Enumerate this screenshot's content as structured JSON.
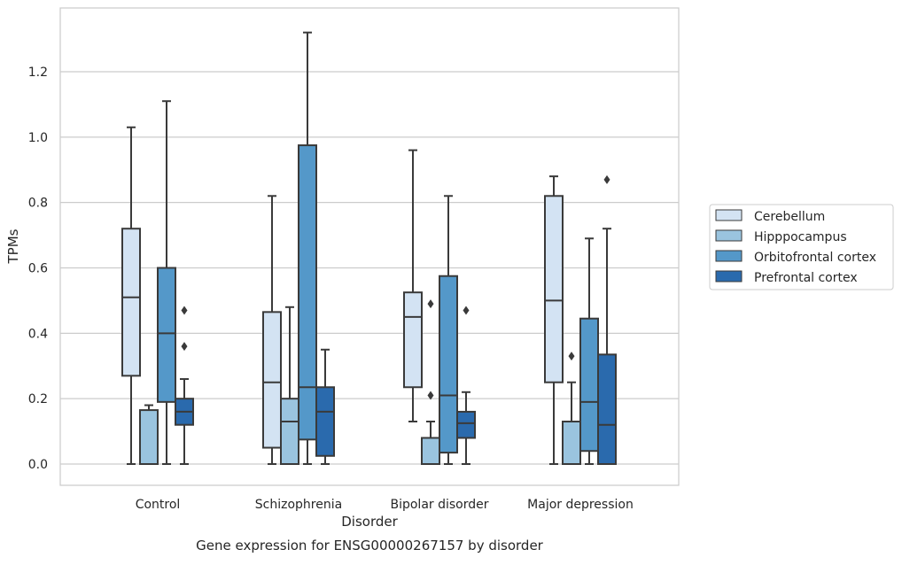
{
  "chart_data": {
    "type": "box",
    "xlabel": "Disorder",
    "ylabel": "TPMs",
    "caption": "Gene expression for ENSG00000267157 by disorder",
    "categories": [
      "Control",
      "Schizophrenia",
      "Bipolar disorder",
      "Major depression"
    ],
    "ylim": [
      -0.065,
      1.395
    ],
    "yticks": [
      "0.0",
      "0.2",
      "0.4",
      "0.6",
      "0.8",
      "1.0",
      "1.2"
    ],
    "grid": true,
    "legend_position": "right",
    "colors": [
      "#d3e3f3",
      "#9ac4df",
      "#5498c9",
      "#2a6aad"
    ],
    "series": [
      {
        "name": "Cerebellum",
        "boxes": [
          {
            "wlo": 0.0,
            "q1": 0.27,
            "med": 0.51,
            "q3": 0.72,
            "whi": 1.03,
            "fliers": []
          },
          {
            "wlo": 0.0,
            "q1": 0.05,
            "med": 0.25,
            "q3": 0.465,
            "whi": 0.82,
            "fliers": []
          },
          {
            "wlo": 0.13,
            "q1": 0.235,
            "med": 0.45,
            "q3": 0.525,
            "whi": 0.96,
            "fliers": []
          },
          {
            "wlo": 0.0,
            "q1": 0.25,
            "med": 0.5,
            "q3": 0.82,
            "whi": 0.88,
            "fliers": []
          }
        ]
      },
      {
        "name": "Hipppocampus",
        "boxes": [
          {
            "wlo": 0.0,
            "q1": 0.0,
            "med": 0.0,
            "q3": 0.165,
            "whi": 0.18,
            "fliers": []
          },
          {
            "wlo": 0.0,
            "q1": 0.0,
            "med": 0.13,
            "q3": 0.2,
            "whi": 0.48,
            "fliers": []
          },
          {
            "wlo": 0.0,
            "q1": 0.0,
            "med": 0.0,
            "q3": 0.08,
            "whi": 0.13,
            "fliers": [
              0.21,
              0.49
            ]
          },
          {
            "wlo": 0.0,
            "q1": 0.0,
            "med": 0.0,
            "q3": 0.13,
            "whi": 0.25,
            "fliers": [
              0.33
            ]
          }
        ]
      },
      {
        "name": "Orbitofrontal cortex",
        "boxes": [
          {
            "wlo": 0.0,
            "q1": 0.19,
            "med": 0.4,
            "q3": 0.6,
            "whi": 1.11,
            "fliers": []
          },
          {
            "wlo": 0.0,
            "q1": 0.075,
            "med": 0.235,
            "q3": 0.975,
            "whi": 1.32,
            "fliers": []
          },
          {
            "wlo": 0.0,
            "q1": 0.035,
            "med": 0.21,
            "q3": 0.575,
            "whi": 0.82,
            "fliers": []
          },
          {
            "wlo": 0.0,
            "q1": 0.04,
            "med": 0.19,
            "q3": 0.445,
            "whi": 0.69,
            "fliers": []
          }
        ]
      },
      {
        "name": "Prefrontal cortex",
        "boxes": [
          {
            "wlo": 0.0,
            "q1": 0.12,
            "med": 0.16,
            "q3": 0.2,
            "whi": 0.26,
            "fliers": [
              0.36,
              0.47
            ]
          },
          {
            "wlo": 0.0,
            "q1": 0.025,
            "med": 0.16,
            "q3": 0.235,
            "whi": 0.35,
            "fliers": []
          },
          {
            "wlo": 0.0,
            "q1": 0.08,
            "med": 0.125,
            "q3": 0.16,
            "whi": 0.22,
            "fliers": [
              0.47
            ]
          },
          {
            "wlo": 0.0,
            "q1": 0.0,
            "med": 0.12,
            "q3": 0.335,
            "whi": 0.72,
            "fliers": [
              0.87
            ]
          }
        ]
      }
    ]
  }
}
